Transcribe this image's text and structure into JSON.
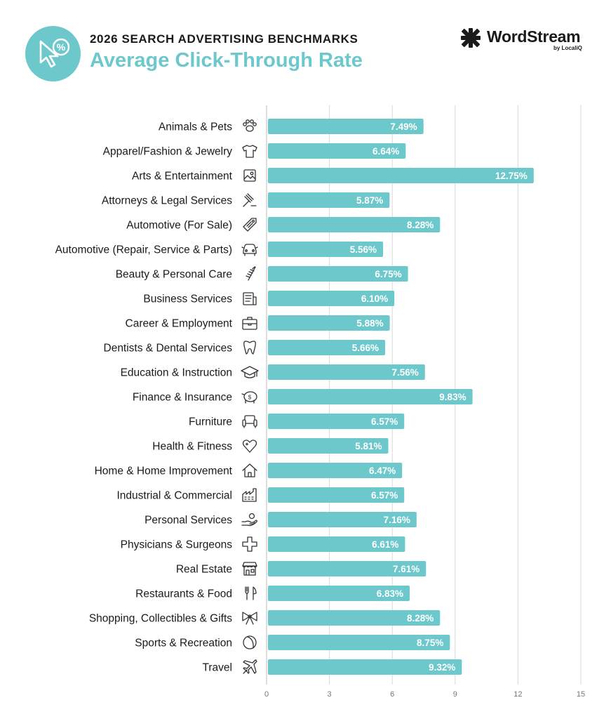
{
  "header": {
    "supertitle": "2026 SEARCH ADVERTISING BENCHMARKS",
    "title": "Average Click-Through Rate",
    "badge_icon": "cursor-percent-icon"
  },
  "brand": {
    "name": "WordStream",
    "sub": "by LocaliQ",
    "icon": "wordstream-logo-icon"
  },
  "colors": {
    "bar": "#6dc8cc",
    "accent": "#6dc8cc",
    "text": "#1a1a1a",
    "grid": "#d9d9d9",
    "value_text": "#ffffff"
  },
  "chart_data": {
    "type": "bar",
    "orientation": "horizontal",
    "title": "Average Click-Through Rate",
    "xlabel": "",
    "ylabel": "",
    "xlim": [
      0,
      15
    ],
    "xticks": [
      0,
      3,
      6,
      9,
      12,
      15
    ],
    "grid": true,
    "value_suffix": "%",
    "categories": [
      "Animals & Pets",
      "Apparel/Fashion & Jewelry",
      "Arts & Entertainment",
      "Attorneys & Legal Services",
      "Automotive (For Sale)",
      "Automotive (Repair, Service & Parts)",
      "Beauty & Personal Care",
      "Business Services",
      "Career & Employment",
      "Dentists & Dental Services",
      "Education & Instruction",
      "Finance & Insurance",
      "Furniture",
      "Health & Fitness",
      "Home & Home Improvement",
      "Industrial & Commercial",
      "Personal Services",
      "Physicians & Surgeons",
      "Real Estate",
      "Restaurants & Food",
      "Shopping, Collectibles & Gifts",
      "Sports & Recreation",
      "Travel"
    ],
    "values": [
      7.49,
      6.64,
      12.75,
      5.87,
      8.28,
      5.56,
      6.75,
      6.1,
      5.88,
      5.66,
      7.56,
      9.83,
      6.57,
      5.81,
      6.47,
      6.57,
      7.16,
      6.61,
      7.61,
      6.83,
      8.28,
      8.75,
      9.32
    ],
    "value_labels": [
      "7.49%",
      "6.64%",
      "12.75%",
      "5.87%",
      "8.28%",
      "5.56%",
      "6.75%",
      "6.10%",
      "5.88%",
      "5.66%",
      "7.56%",
      "9.83%",
      "6.57%",
      "5.81%",
      "6.47%",
      "6.57%",
      "7.16%",
      "6.61%",
      "7.61%",
      "6.83%",
      "8.28%",
      "8.75%",
      "9.32%"
    ],
    "icons": [
      "paw-icon",
      "shirt-icon",
      "picture-icon",
      "gavel-icon",
      "price-tag-icon",
      "car-icon",
      "comb-icon",
      "document-icon",
      "briefcase-icon",
      "tooth-icon",
      "graduation-cap-icon",
      "piggy-bank-icon",
      "armchair-icon",
      "heart-icon",
      "house-icon",
      "factory-icon",
      "hand-icon",
      "medical-cross-icon",
      "storefront-icon",
      "fork-knife-icon",
      "gift-bow-icon",
      "ball-icon",
      "airplane-icon"
    ]
  }
}
